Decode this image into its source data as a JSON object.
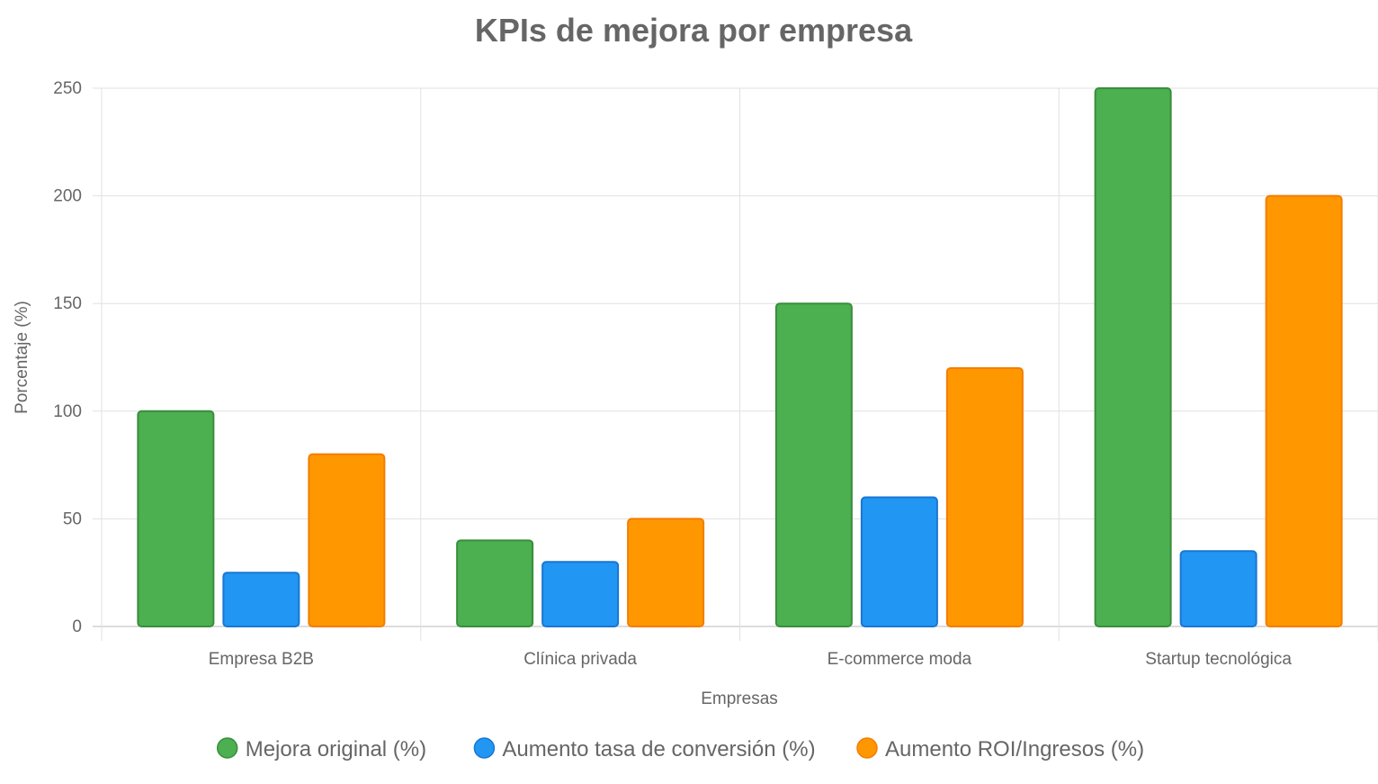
{
  "chart_data": {
    "type": "bar",
    "title": "KPIs de mejora por empresa",
    "xlabel": "Empresas",
    "ylabel": "Porcentaje (%)",
    "ylim": [
      0,
      250
    ],
    "yticks": [
      0,
      50,
      100,
      150,
      200,
      250
    ],
    "grid": true,
    "legend_position": "bottom",
    "categories": [
      "Empresa B2B",
      "Clínica privada",
      "E-commerce moda",
      "Startup tecnológica"
    ],
    "series": [
      {
        "name": "Mejora original (%)",
        "values": [
          100,
          40,
          150,
          250
        ],
        "color": "#4CAF50",
        "border": "#388E3C"
      },
      {
        "name": "Aumento tasa de conversión (%)",
        "values": [
          25,
          30,
          60,
          35
        ],
        "color": "#2196F3",
        "border": "#1976D2"
      },
      {
        "name": "Aumento ROI/Ingresos (%)",
        "values": [
          80,
          50,
          120,
          200
        ],
        "color": "#FF9800",
        "border": "#F57C00"
      }
    ]
  }
}
